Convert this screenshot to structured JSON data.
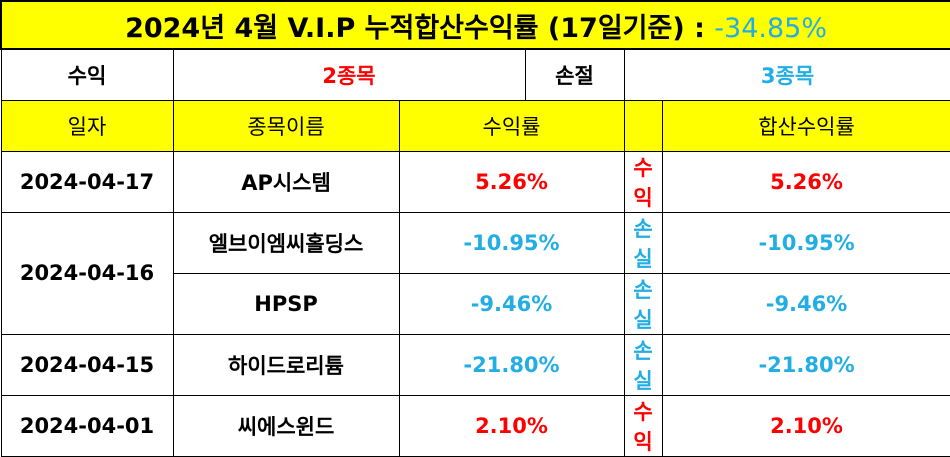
{
  "title": {
    "text": "2024년 4월 V.I.P 누적합산수익률 (17일기준) : ",
    "total_return": "-34.85%"
  },
  "summary": {
    "profit_label": "수익",
    "profit_count": "2종목",
    "loss_label": "손절",
    "loss_count": "3종목"
  },
  "headers": {
    "date": "일자",
    "name": "종목이름",
    "return": "수익률",
    "result": "",
    "cumulative": "합산수익률"
  },
  "rows": [
    {
      "date": "2024-04-17",
      "name": "AP시스템",
      "return": "5.26%",
      "result": "수익",
      "cumulative": "5.26%"
    },
    {
      "date": "2024-04-16",
      "name": "엘브이엠씨홀딩스",
      "return": "-10.95%",
      "result": "손실",
      "cumulative": "-10.95%"
    },
    {
      "date": "",
      "name": "HPSP",
      "return": "-9.46%",
      "result": "손실",
      "cumulative": "-9.46%"
    },
    {
      "date": "2024-04-15",
      "name": "하이드로리튬",
      "return": "-21.80%",
      "result": "손실",
      "cumulative": "-21.80%"
    },
    {
      "date": "2024-04-01",
      "name": "씨에스윈드",
      "return": "2.10%",
      "result": "수익",
      "cumulative": "2.10%"
    }
  ],
  "colors": {
    "header_bg": "#ffff00",
    "profit": "#ff0000",
    "loss": "#22aee4"
  }
}
